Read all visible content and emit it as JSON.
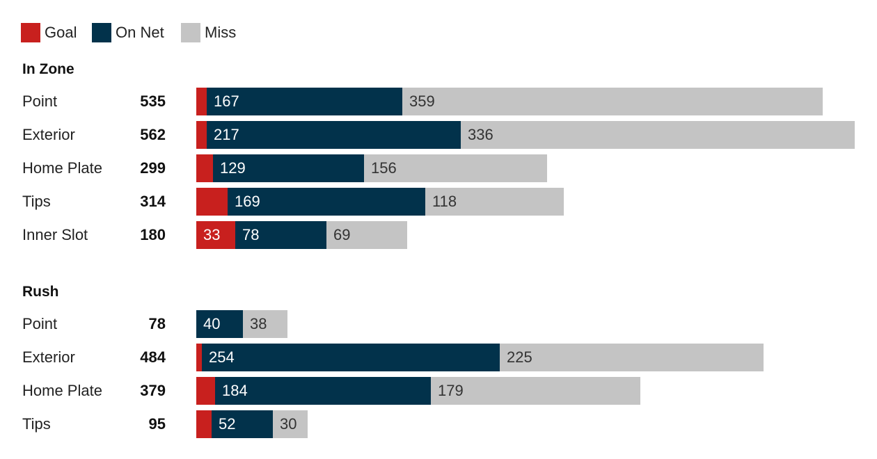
{
  "chart_data": {
    "type": "bar",
    "orientation": "horizontal",
    "stacked": true,
    "legend": [
      {
        "name": "Goal",
        "color": "#c8201e"
      },
      {
        "name": "On Net",
        "color": "#02324b"
      },
      {
        "name": "Miss",
        "color": "#c4c4c4"
      }
    ],
    "max_value": 562,
    "groups": [
      {
        "title": "In Zone",
        "rows": [
          {
            "label": "Point",
            "total": "535",
            "goal": 9,
            "on_net": 167,
            "miss": 359,
            "goal_label": "",
            "on_net_label": "167",
            "miss_label": "359"
          },
          {
            "label": "Exterior",
            "total": "562",
            "goal": 9,
            "on_net": 217,
            "miss": 336,
            "goal_label": "",
            "on_net_label": "217",
            "miss_label": "336"
          },
          {
            "label": "Home Plate",
            "total": "299",
            "goal": 14,
            "on_net": 129,
            "miss": 156,
            "goal_label": "",
            "on_net_label": "129",
            "miss_label": "156"
          },
          {
            "label": "Tips",
            "total": "314",
            "goal": 27,
            "on_net": 169,
            "miss": 118,
            "goal_label": "",
            "on_net_label": "169",
            "miss_label": "118"
          },
          {
            "label": "Inner Slot",
            "total": "180",
            "goal": 33,
            "on_net": 78,
            "miss": 69,
            "goal_label": "33",
            "on_net_label": "78",
            "miss_label": "69"
          }
        ]
      },
      {
        "title": "Rush",
        "rows": [
          {
            "label": "Point",
            "total": "78",
            "goal": 0,
            "on_net": 40,
            "miss": 38,
            "goal_label": "",
            "on_net_label": "40",
            "miss_label": "38"
          },
          {
            "label": "Exterior",
            "total": "484",
            "goal": 5,
            "on_net": 254,
            "miss": 225,
            "goal_label": "",
            "on_net_label": "254",
            "miss_label": "225"
          },
          {
            "label": "Home Plate",
            "total": "379",
            "goal": 16,
            "on_net": 184,
            "miss": 179,
            "goal_label": "",
            "on_net_label": "184",
            "miss_label": "179"
          },
          {
            "label": "Tips",
            "total": "95",
            "goal": 13,
            "on_net": 52,
            "miss": 30,
            "goal_label": "",
            "on_net_label": "52",
            "miss_label": "30"
          }
        ]
      }
    ]
  }
}
